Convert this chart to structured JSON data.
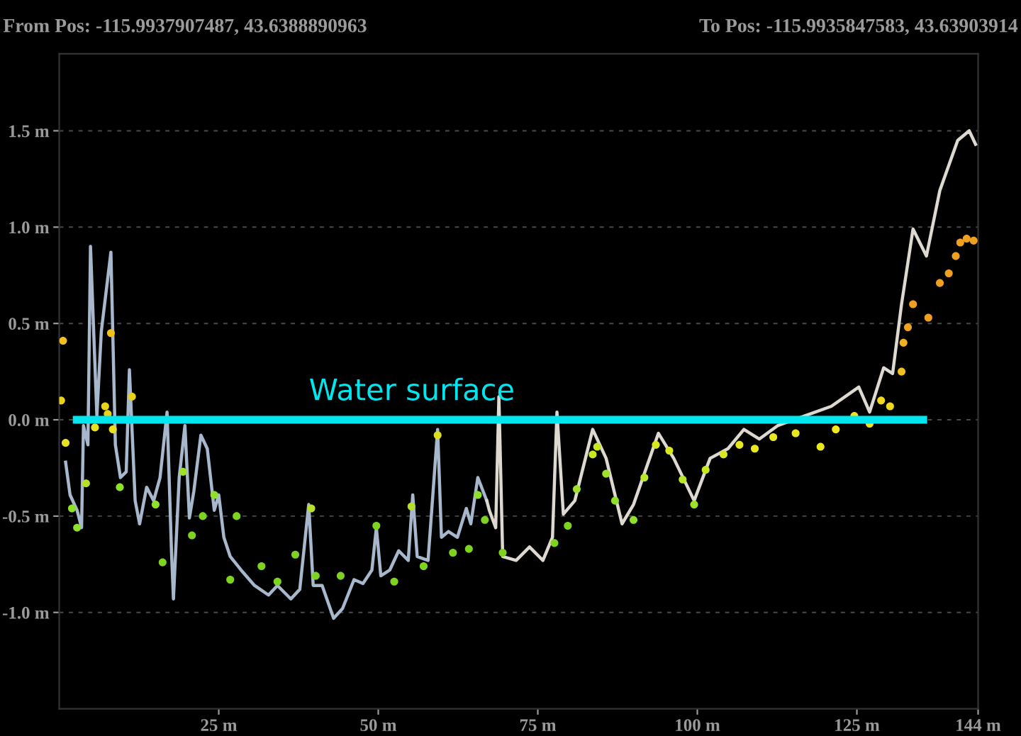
{
  "chart_data": {
    "type": "scatter",
    "annotations": [
      "From Pos: -115.9937907487, 43.6388890963",
      "To Pos: -115.9935847583, 43.63903914"
    ],
    "xlim": [
      0,
      144
    ],
    "xticks": [
      {
        "value": 25,
        "label": "25 m"
      },
      {
        "value": 50,
        "label": "50 m"
      },
      {
        "value": 75,
        "label": "75 m"
      },
      {
        "value": 100,
        "label": "100 m"
      },
      {
        "value": 125,
        "label": "125 m"
      },
      {
        "value": 144,
        "label": "144 m"
      }
    ],
    "ylim": [
      -1.5,
      1.9
    ],
    "yticks": [
      {
        "value": -1.0,
        "label": "-1.0 m"
      },
      {
        "value": -0.5,
        "label": "-0.5 m"
      },
      {
        "value": 0.0,
        "label": "0.0 m"
      },
      {
        "value": 0.5,
        "label": "0.5 m"
      },
      {
        "value": 1.0,
        "label": "1.0 m"
      },
      {
        "value": 1.5,
        "label": "1.5 m"
      }
    ],
    "grid": "y",
    "legend": false,
    "series": [
      {
        "type": "line",
        "color": "#a8b8cc",
        "x": [
          1.0,
          1.7,
          2.8,
          3.5,
          3.8,
          4.5,
          4.9,
          5.9,
          6.6,
          8.1,
          8.8,
          9.6,
          10.5,
          11.0,
          11.9,
          12.6,
          13.7,
          14.8,
          15.8,
          16.9,
          17.6,
          17.9,
          18.8,
          19.7,
          20.4,
          21.1,
          22.2,
          23.2,
          24.3,
          25.0,
          25.8,
          26.8,
          28.5,
          30.6,
          32.8,
          34.2,
          36.3,
          37.7,
          39.1,
          39.8,
          41.2,
          43.0,
          44.4,
          46.2,
          47.6,
          49.0,
          49.7,
          50.4,
          51.8,
          53.2,
          54.7,
          55.4,
          56.1,
          57.8,
          59.3,
          59.9,
          61.0,
          62.4,
          63.8,
          64.5,
          65.6,
          67.0
        ],
        "values": [
          -0.22,
          -0.39,
          -0.47,
          -0.56,
          -0.03,
          -0.13,
          0.9,
          0.02,
          0.46,
          0.87,
          -0.13,
          -0.3,
          -0.27,
          0.26,
          -0.42,
          -0.54,
          -0.35,
          -0.42,
          -0.3,
          0.04,
          -0.69,
          -0.93,
          -0.3,
          -0.03,
          -0.51,
          -0.37,
          -0.08,
          -0.15,
          -0.47,
          -0.39,
          -0.61,
          -0.71,
          -0.78,
          -0.86,
          -0.91,
          -0.86,
          -0.93,
          -0.88,
          -0.44,
          -0.86,
          -0.86,
          -1.03,
          -0.98,
          -0.83,
          -0.85,
          -0.78,
          -0.56,
          -0.81,
          -0.78,
          -0.68,
          -0.73,
          -0.39,
          -0.71,
          -0.73,
          -0.05,
          -0.61,
          -0.58,
          -0.61,
          -0.46,
          -0.54,
          -0.3,
          -0.42
        ]
      },
      {
        "type": "line",
        "color": "#ddd8d0",
        "x": [
          67.0,
          67.4,
          68.4,
          68.9,
          69.5,
          71.6,
          73.7,
          75.8,
          77.3,
          78.0,
          79.0,
          80.8,
          83.6,
          85.7,
          88.2,
          90.0,
          93.9,
          96.3,
          99.5,
          102.0,
          104.8,
          107.3,
          109.7,
          112.6,
          116.8,
          121.0,
          125.3,
          127.0,
          129.2,
          130.6,
          132.0,
          133.8,
          135.9,
          138.0,
          140.8,
          142.6,
          143.6
        ],
        "values": [
          -0.42,
          -0.47,
          -0.56,
          0.12,
          -0.71,
          -0.73,
          -0.66,
          -0.73,
          -0.61,
          0.04,
          -0.49,
          -0.42,
          -0.05,
          -0.2,
          -0.54,
          -0.44,
          -0.07,
          -0.2,
          -0.42,
          -0.2,
          -0.15,
          -0.05,
          -0.1,
          -0.03,
          0.02,
          0.07,
          0.17,
          0.04,
          0.27,
          0.24,
          0.6,
          0.99,
          0.85,
          1.19,
          1.45,
          1.5,
          1.43
        ]
      },
      {
        "marker": "circle",
        "x": [
          0.3,
          0.6,
          1.0,
          2.0,
          2.8,
          4.2,
          5.6,
          7.2,
          7.6,
          8.1,
          8.4,
          9.5,
          11.4,
          15.1,
          16.2,
          19.4,
          20.8,
          22.5,
          24.3,
          26.8,
          27.8,
          31.7,
          34.2,
          37.0,
          39.5,
          40.2,
          44.1,
          49.7,
          52.5,
          55.2,
          57.1,
          59.3,
          61.7,
          64.2,
          65.6,
          66.7,
          69.5,
          77.6,
          79.7,
          81.1,
          83.6,
          84.3,
          85.7,
          87.1,
          90.0,
          91.7,
          93.5,
          95.6,
          97.7,
          99.5,
          101.3,
          104.1,
          106.6,
          109.0,
          111.9,
          115.4,
          119.3,
          121.7,
          124.6,
          127.0,
          128.8,
          130.2,
          132.0,
          132.3,
          133.0,
          133.8,
          136.2,
          138.0,
          139.4,
          140.5,
          141.2,
          142.2,
          143.3
        ],
        "values": [
          0.1,
          0.41,
          -0.12,
          -0.46,
          -0.56,
          -0.33,
          -0.04,
          0.07,
          0.03,
          0.45,
          -0.05,
          -0.35,
          0.12,
          -0.44,
          -0.74,
          -0.27,
          -0.6,
          -0.5,
          -0.39,
          -0.83,
          -0.5,
          -0.76,
          -0.84,
          -0.7,
          -0.46,
          -0.81,
          -0.81,
          -0.55,
          -0.84,
          -0.45,
          -0.76,
          -0.08,
          -0.69,
          -0.67,
          -0.39,
          -0.52,
          -0.69,
          -0.64,
          -0.55,
          -0.36,
          -0.18,
          -0.14,
          -0.28,
          -0.42,
          -0.52,
          -0.3,
          -0.13,
          -0.16,
          -0.31,
          -0.44,
          -0.26,
          -0.18,
          -0.13,
          -0.15,
          -0.09,
          -0.07,
          -0.14,
          -0.05,
          0.02,
          -0.02,
          0.1,
          0.07,
          0.25,
          0.4,
          0.48,
          0.6,
          0.53,
          0.71,
          0.76,
          0.85,
          0.92,
          0.94,
          0.93
        ],
        "colors": [
          "#e8d21a",
          "#f0c020",
          "#e8e020",
          "#8ee02a",
          "#8ee02a",
          "#b8e02a",
          "#e8e020",
          "#e8d21a",
          "#e8d21a",
          "#f0c020",
          "#e8e020",
          "#8ee02a",
          "#e8d21a",
          "#8ee02a",
          "#7ed321",
          "#9ee02a",
          "#7ed321",
          "#7ed321",
          "#8ee02a",
          "#7ed321",
          "#7ed321",
          "#7ed321",
          "#7ed321",
          "#7ed321",
          "#b8e02a",
          "#7ed321",
          "#7ed321",
          "#7ed321",
          "#7ed321",
          "#b8e02a",
          "#7ed321",
          "#d8e020",
          "#7ed321",
          "#7ed321",
          "#8ee02a",
          "#7ed321",
          "#7ed321",
          "#7ed321",
          "#7ed321",
          "#9ee02a",
          "#c8e820",
          "#c8e820",
          "#9ee02a",
          "#8ee02a",
          "#8ee02a",
          "#b8e82a",
          "#d8e820",
          "#d8e820",
          "#b8e82a",
          "#9ee02a",
          "#c8e820",
          "#d8e820",
          "#e8e820",
          "#e8e820",
          "#e8e820",
          "#e8e820",
          "#e8e820",
          "#f0e820",
          "#f0e020",
          "#f0e020",
          "#f0d820",
          "#f0d820",
          "#f0c020",
          "#f0b020",
          "#f0a020",
          "#f0a020",
          "#f0a020",
          "#f0a020",
          "#f0a020",
          "#f0a020",
          "#f0a020",
          "#f0a020",
          "#f0a020"
        ]
      },
      {
        "type": "line",
        "name": "Water surface",
        "color": "#00e5ee",
        "x": [
          2.75,
          135.4
        ],
        "values": [
          0,
          0
        ]
      }
    ]
  }
}
